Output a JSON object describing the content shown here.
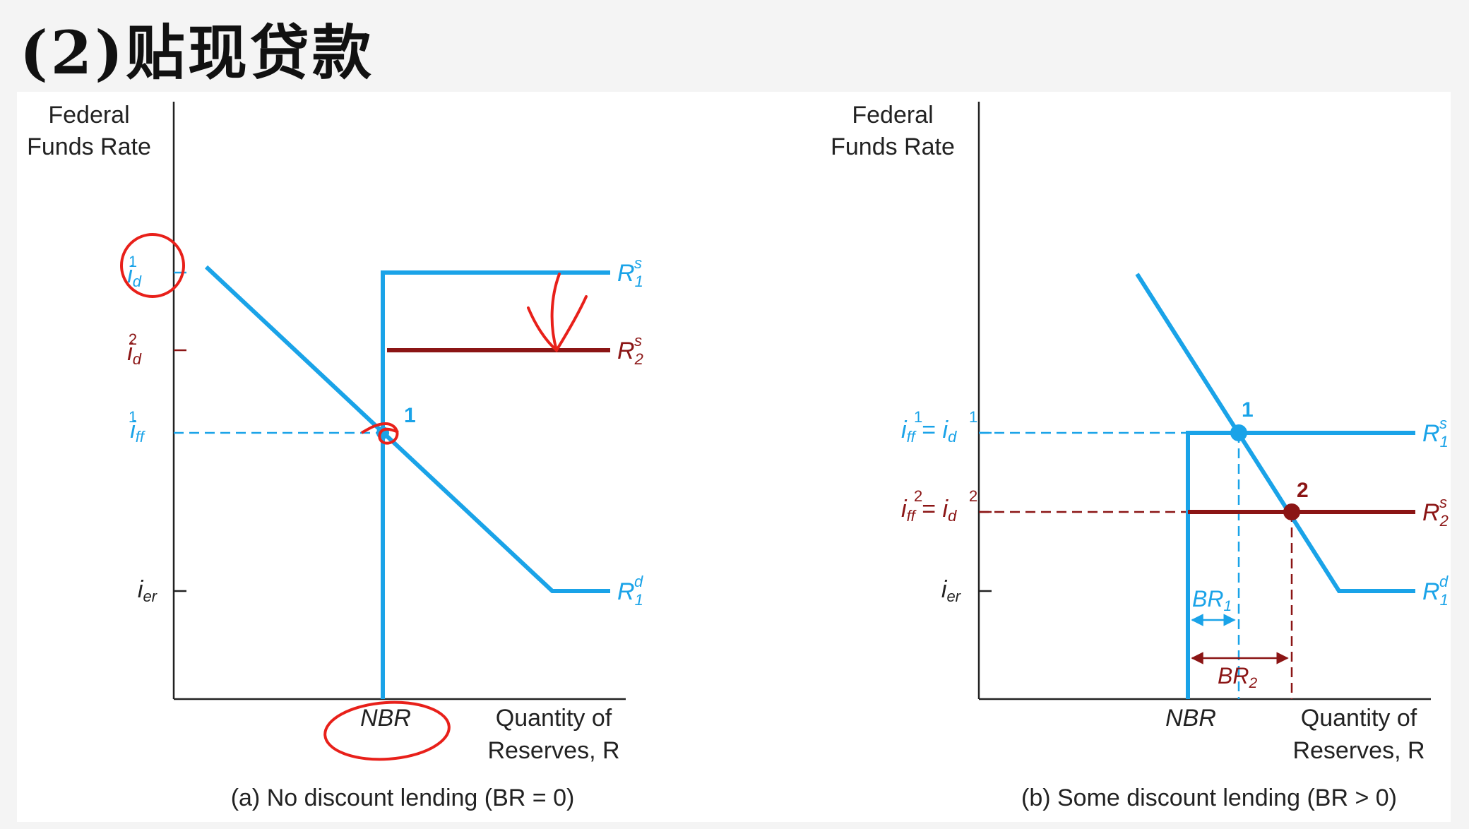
{
  "title": "(2)贴现贷款",
  "colors": {
    "blue": "#1aa3e8",
    "dark_red": "#8b1515",
    "annotation_red": "#e8201a",
    "black": "#222222"
  },
  "panel_a": {
    "y_axis_label_line1": "Federal",
    "y_axis_label_line2": "Funds Rate",
    "x_axis_label_line1": "Quantity of",
    "x_axis_label_line2": "Reserves, R",
    "nbr_label": "NBR",
    "rate_labels": {
      "id1": {
        "base": "i",
        "sup": "1",
        "sub": "d"
      },
      "id2": {
        "base": "i",
        "sup": "2",
        "sub": "d"
      },
      "iff1": {
        "base": "i",
        "sup": "1",
        "sub": "ff"
      },
      "ier": {
        "base": "i",
        "sub": "er"
      }
    },
    "curve_labels": {
      "rs1": {
        "base": "R",
        "sup": "s",
        "sub": "1"
      },
      "rs2": {
        "base": "R",
        "sup": "s",
        "sub": "2"
      },
      "rd1": {
        "base": "R",
        "sup": "d",
        "sub": "1"
      }
    },
    "point_label": "1",
    "caption": "(a) No discount lending (BR = 0)"
  },
  "panel_b": {
    "y_axis_label_line1": "Federal",
    "y_axis_label_line2": "Funds Rate",
    "x_axis_label_line1": "Quantity of",
    "x_axis_label_line2": "Reserves, R",
    "nbr_label": "NBR",
    "rate_labels": {
      "eq1": {
        "left": {
          "base": "i",
          "sup": "1",
          "sub": "ff"
        },
        "right": {
          "base": "i",
          "sup": "1",
          "sub": "d"
        }
      },
      "eq2": {
        "left": {
          "base": "i",
          "sup": "2",
          "sub": "ff"
        },
        "right": {
          "base": "i",
          "sup": "2",
          "sub": "d"
        }
      },
      "ier": {
        "base": "i",
        "sub": "er"
      }
    },
    "curve_labels": {
      "rs1": {
        "base": "R",
        "sup": "s",
        "sub": "1"
      },
      "rs2": {
        "base": "R",
        "sup": "s",
        "sub": "2"
      },
      "rd1": {
        "base": "R",
        "sup": "d",
        "sub": "1"
      }
    },
    "br1_label": {
      "base": "BR",
      "sub": "1"
    },
    "br2_label": {
      "base": "BR",
      "sub": "2"
    },
    "point1_label": "1",
    "point2_label": "2",
    "caption": "(b) Some discount lending (BR > 0)"
  }
}
